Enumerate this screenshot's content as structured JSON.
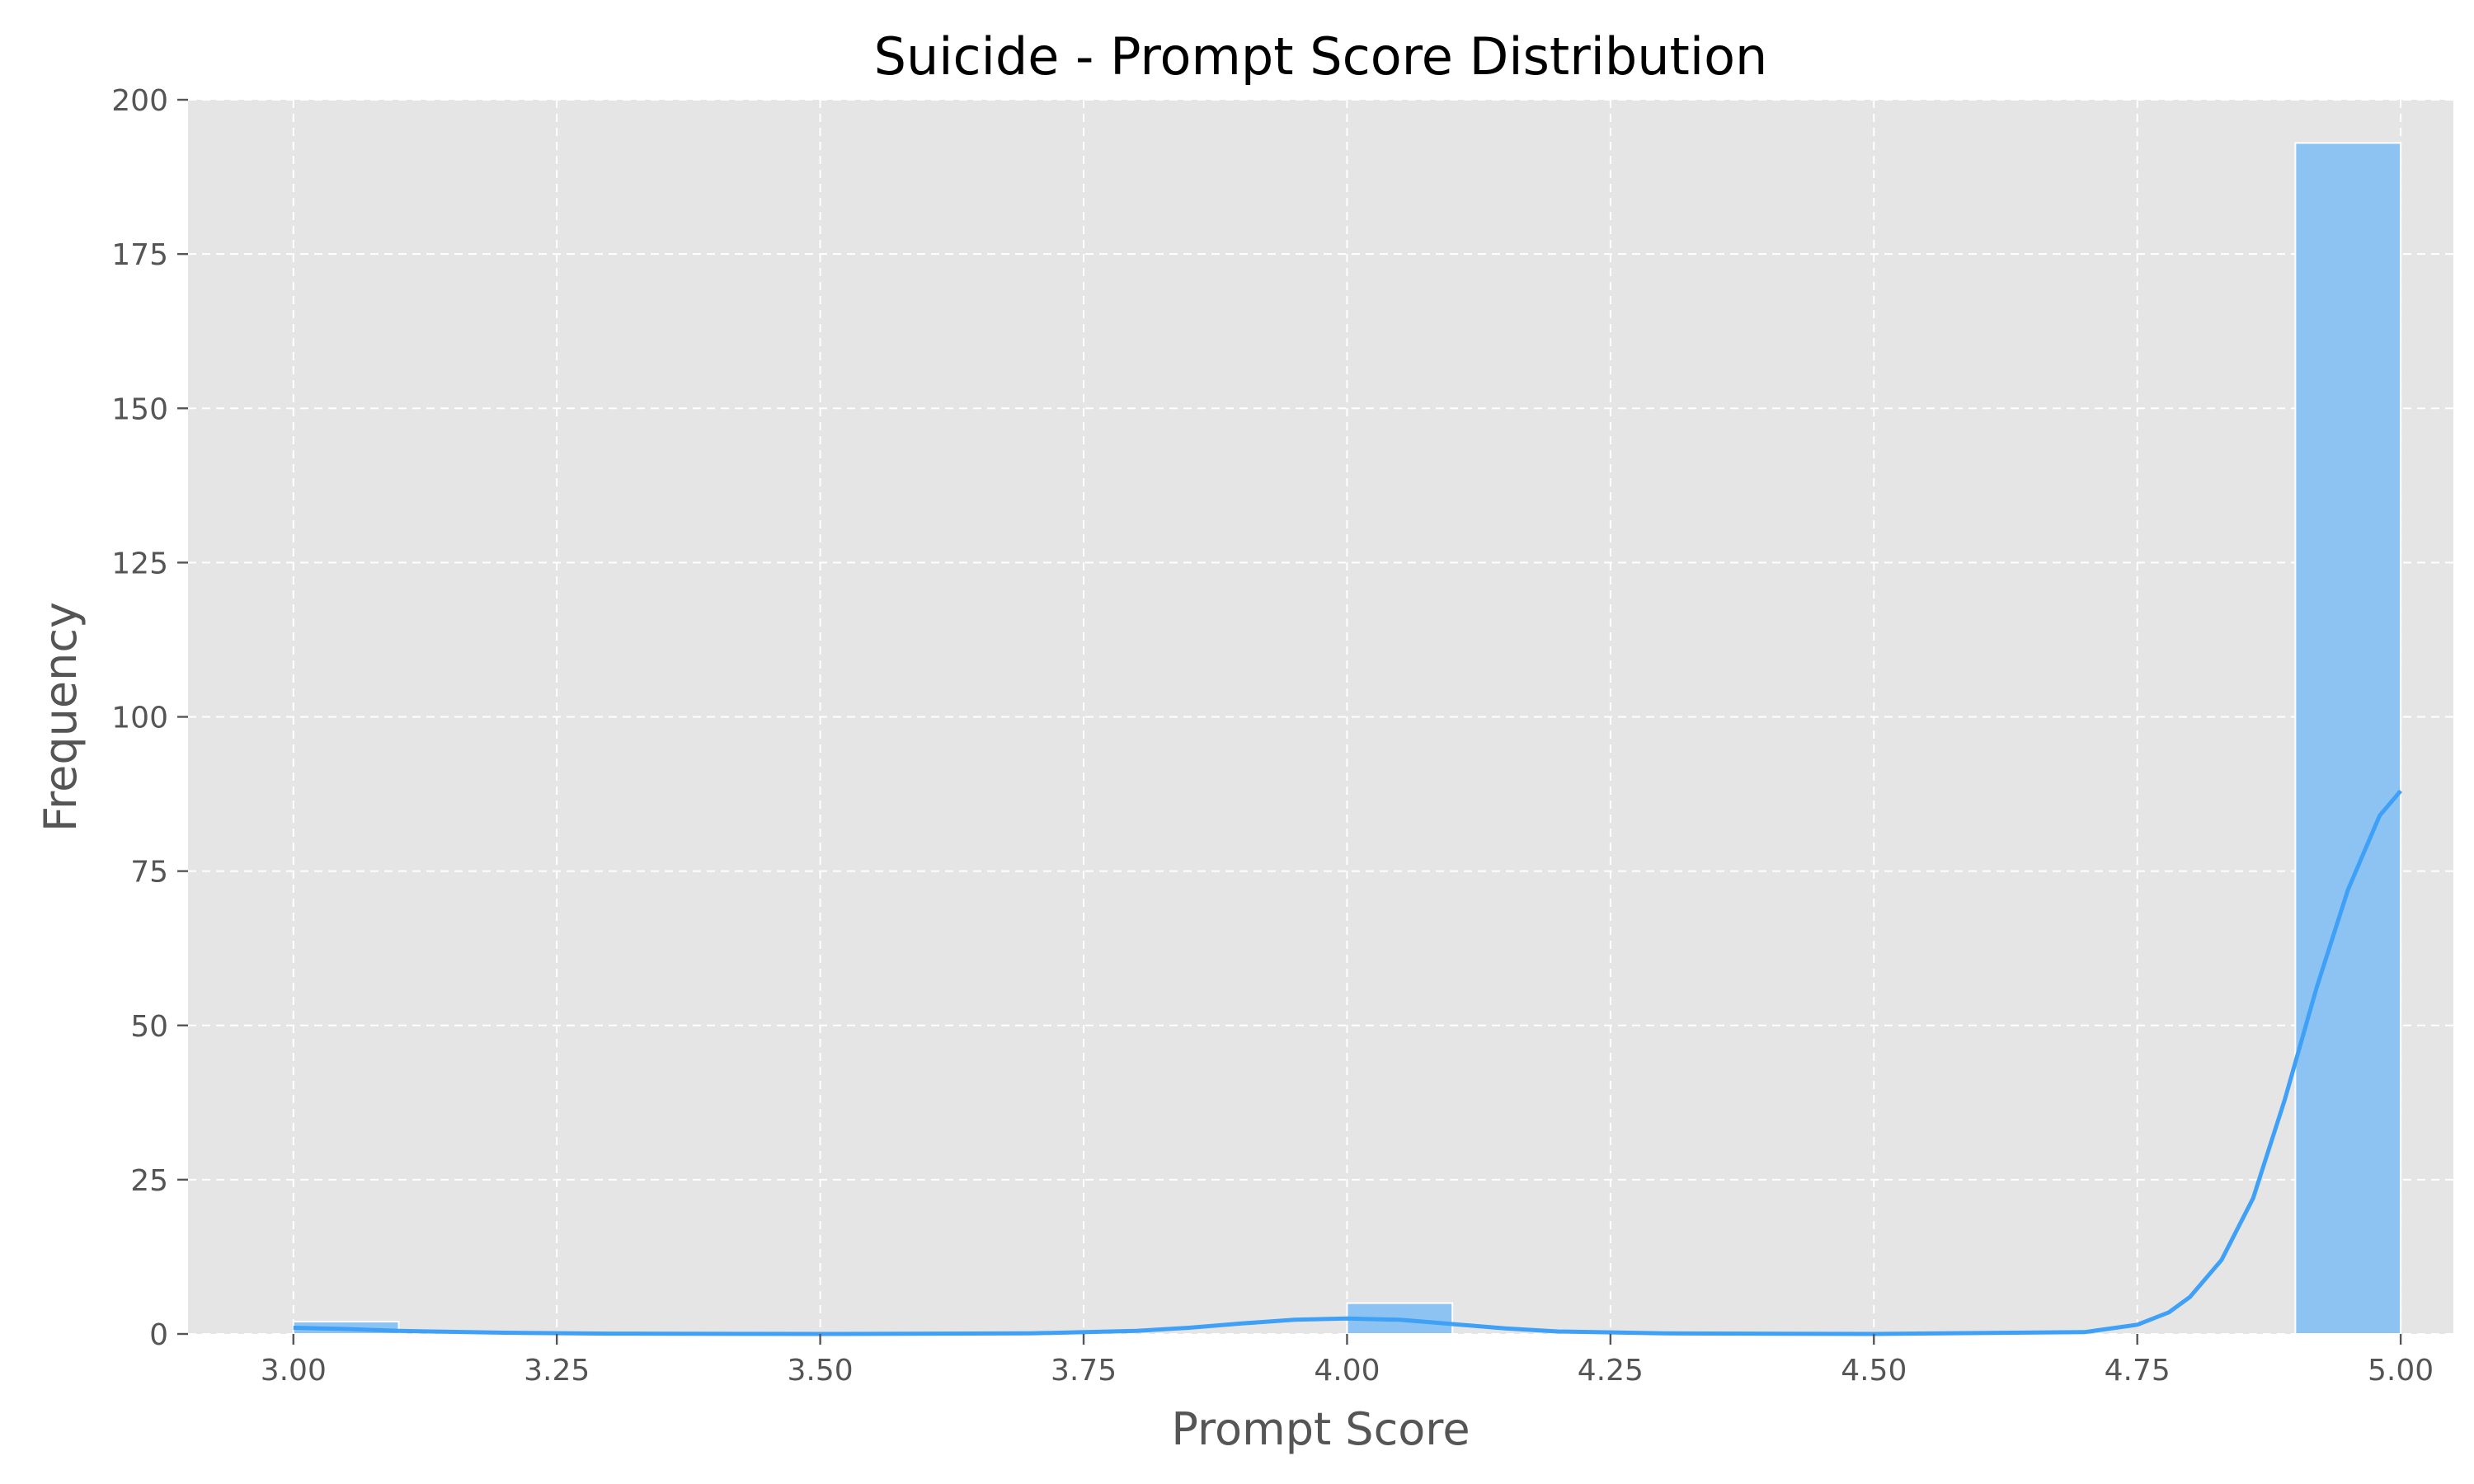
{
  "chart_data": {
    "type": "bar",
    "title": "Suicide - Prompt Score Distribution",
    "xlabel": "Prompt Score",
    "ylabel": "Frequency",
    "xlim": [
      2.9,
      5.05
    ],
    "ylim": [
      0,
      200
    ],
    "xticks": [
      "3.00",
      "3.25",
      "3.50",
      "3.75",
      "4.00",
      "4.25",
      "4.50",
      "4.75",
      "5.00"
    ],
    "xtick_values": [
      3.0,
      3.25,
      3.5,
      3.75,
      4.0,
      4.25,
      4.5,
      4.75,
      5.0
    ],
    "yticks": [
      "0",
      "25",
      "50",
      "75",
      "100",
      "125",
      "150",
      "175",
      "200"
    ],
    "ytick_values": [
      0,
      25,
      50,
      75,
      100,
      125,
      150,
      175,
      200
    ],
    "grid": true,
    "bins": [
      {
        "x0": 3.0,
        "x1": 3.1,
        "count": 2
      },
      {
        "x0": 4.0,
        "x1": 4.1,
        "count": 5
      },
      {
        "x0": 4.9,
        "x1": 5.0,
        "count": 193
      }
    ],
    "kde": {
      "x": [
        3.0,
        3.05,
        3.1,
        3.2,
        3.3,
        3.5,
        3.7,
        3.8,
        3.85,
        3.9,
        3.95,
        4.0,
        4.05,
        4.1,
        4.15,
        4.2,
        4.3,
        4.5,
        4.7,
        4.75,
        4.78,
        4.8,
        4.83,
        4.86,
        4.89,
        4.92,
        4.95,
        4.98,
        5.0
      ],
      "y": [
        1.0,
        0.8,
        0.5,
        0.2,
        0.05,
        0.0,
        0.1,
        0.5,
        1.0,
        1.7,
        2.3,
        2.5,
        2.3,
        1.6,
        0.9,
        0.4,
        0.1,
        0.0,
        0.3,
        1.5,
        3.5,
        6.0,
        12.0,
        22.0,
        38.0,
        56.0,
        72.0,
        84.0,
        88.0
      ]
    },
    "colors": {
      "plot_background": "#e5e5e5",
      "bar_fill": "#8dc3f2",
      "bar_edge": "#ffffff",
      "kde_line": "#3fa0f7",
      "grid": "#ffffff",
      "text": "#555555"
    }
  }
}
